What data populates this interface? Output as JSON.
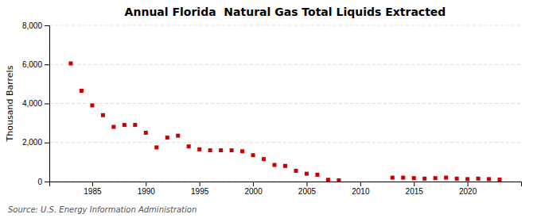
{
  "chart_data": {
    "type": "scatter",
    "title": "Annual Florida  Natural Gas Total Liquids Extracted",
    "y_label": "Thousand Barrels",
    "annotation": "Source: U.S. Energy Information Administration",
    "color": "#cc0000",
    "marker": "square",
    "grid": true,
    "xlim": [
      1981,
      2025
    ],
    "xticks": [
      1985,
      1990,
      1995,
      2000,
      2005,
      2010,
      2015,
      2020
    ],
    "ylim": [
      0,
      8000
    ],
    "yticks": [
      0,
      {
        "value": 2000,
        "label": "2,000"
      },
      {
        "value": 4000,
        "label": "4,000"
      },
      {
        "value": 6000,
        "label": "6,000"
      },
      {
        "value": 8000,
        "label": "8,000"
      }
    ],
    "x": [
      1983,
      1984,
      1985,
      1986,
      1987,
      1988,
      1989,
      1990,
      1991,
      1992,
      1993,
      1994,
      1995,
      1996,
      1997,
      1998,
      1999,
      2000,
      2001,
      2002,
      2003,
      2004,
      2005,
      2006,
      2007,
      2008,
      2013,
      2014,
      2015,
      2016,
      2017,
      2018,
      2019,
      2020,
      2021,
      2022,
      2023
    ],
    "values": [
      6050,
      4650,
      3900,
      3400,
      2800,
      2900,
      2900,
      2500,
      1750,
      2250,
      2350,
      1800,
      1650,
      1600,
      1600,
      1600,
      1550,
      1350,
      1150,
      850,
      800,
      550,
      400,
      350,
      90,
      60,
      200,
      200,
      175,
      150,
      175,
      200,
      150,
      125,
      150,
      125,
      100
    ]
  }
}
